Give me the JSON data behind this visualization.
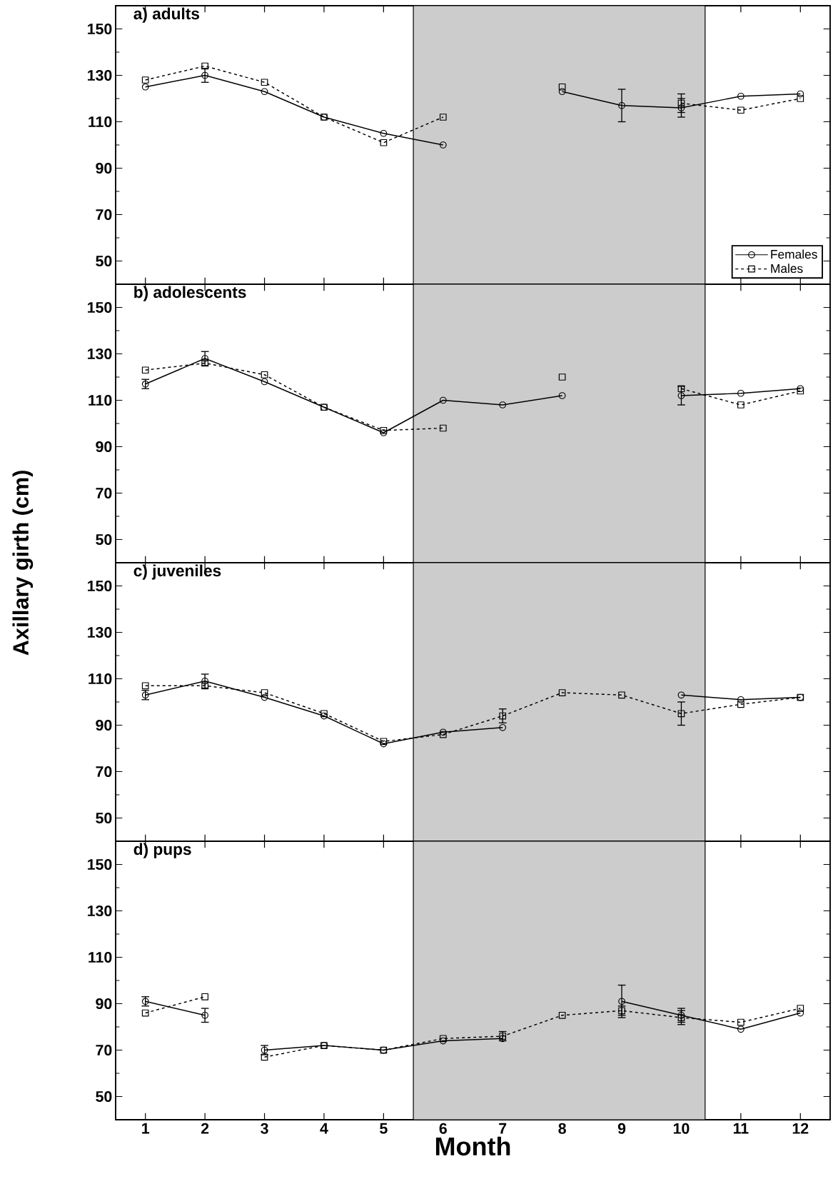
{
  "chart_data": [
    {
      "type": "line",
      "title": "a)  adults",
      "x": [
        1,
        2,
        3,
        4,
        5,
        6,
        7,
        8,
        9,
        10,
        11,
        12
      ],
      "xlim": [
        0.5,
        12.5
      ],
      "xticks": [
        1,
        2,
        3,
        4,
        5,
        6,
        7,
        8,
        9,
        10,
        11,
        12
      ],
      "ylim": [
        40,
        160
      ],
      "yticks": [
        50,
        70,
        90,
        110,
        130,
        150
      ],
      "tick_labels": "y",
      "legend": "bottom right",
      "bands": [
        {
          "axis": "x",
          "from": 5.5,
          "to": 10.4,
          "color": "#cccccc"
        }
      ],
      "series": [
        {
          "name": "Females",
          "color": "#000000",
          "marker": "circle",
          "line_style": "solid",
          "values": [
            125,
            130,
            123,
            112,
            105,
            100,
            null,
            123,
            117,
            116,
            121,
            122
          ],
          "errors": [
            null,
            3,
            null,
            null,
            null,
            null,
            null,
            null,
            7,
            4,
            null,
            null
          ]
        },
        {
          "name": "Males",
          "color": "#000000",
          "marker": "square",
          "line_style": "dashed",
          "values": [
            128,
            134,
            127,
            112,
            101,
            112,
            null,
            125,
            null,
            118,
            115,
            120
          ],
          "errors": [
            null,
            null,
            null,
            null,
            null,
            null,
            null,
            null,
            null,
            4,
            null,
            null
          ]
        }
      ]
    },
    {
      "type": "line",
      "title": "b)  adolescents",
      "ylabel": "Axillary girth (cm)",
      "x": [
        1,
        2,
        3,
        4,
        5,
        6,
        7,
        8,
        9,
        10,
        11,
        12
      ],
      "xlim": [
        0.5,
        12.5
      ],
      "xticks": [
        1,
        2,
        3,
        4,
        5,
        6,
        7,
        8,
        9,
        10,
        11,
        12
      ],
      "ylim": [
        40,
        160
      ],
      "yticks": [
        50,
        70,
        90,
        110,
        130,
        150
      ],
      "tick_labels": "y",
      "bands": [
        {
          "axis": "x",
          "from": 5.5,
          "to": 10.4,
          "color": "#cccccc"
        }
      ],
      "series": [
        {
          "color": "#000000",
          "marker": "circle",
          "line_style": "solid",
          "values": [
            117,
            128,
            118,
            107,
            96,
            110,
            108,
            112,
            null,
            112,
            113,
            115
          ],
          "errors": [
            2,
            3,
            null,
            null,
            null,
            null,
            null,
            null,
            null,
            4,
            null,
            null
          ]
        },
        {
          "color": "#000000",
          "marker": "square",
          "line_style": "dashed",
          "values": [
            123,
            126,
            121,
            107,
            97,
            98,
            null,
            120,
            null,
            115,
            108,
            114
          ]
        }
      ]
    },
    {
      "type": "line",
      "title": "c)  juveniles",
      "x": [
        1,
        2,
        3,
        4,
        5,
        6,
        7,
        8,
        9,
        10,
        11,
        12
      ],
      "xlim": [
        0.5,
        12.5
      ],
      "xticks": [
        1,
        2,
        3,
        4,
        5,
        6,
        7,
        8,
        9,
        10,
        11,
        12
      ],
      "ylim": [
        40,
        160
      ],
      "yticks": [
        50,
        70,
        90,
        110,
        130,
        150
      ],
      "tick_labels": "y",
      "bands": [
        {
          "axis": "x",
          "from": 5.5,
          "to": 10.4,
          "color": "#cccccc"
        }
      ],
      "series": [
        {
          "color": "#000000",
          "marker": "circle",
          "line_style": "solid",
          "values": [
            103,
            109,
            102,
            94,
            82,
            87,
            89,
            null,
            null,
            103,
            101,
            102
          ],
          "errors": [
            2,
            3,
            null,
            null,
            null,
            null,
            null,
            null,
            null,
            null,
            null,
            null
          ]
        },
        {
          "color": "#000000",
          "marker": "square",
          "line_style": "dashed",
          "values": [
            107,
            107,
            104,
            95,
            83,
            86,
            94,
            104,
            103,
            95,
            99,
            102
          ],
          "errors": [
            null,
            null,
            null,
            null,
            null,
            null,
            3,
            null,
            null,
            5,
            null,
            null
          ]
        }
      ]
    },
    {
      "type": "line",
      "title": "d)  pups",
      "xlabel": "Month",
      "xlim": [
        0.5,
        12.5
      ],
      "xticks": [
        1,
        2,
        3,
        4,
        5,
        6,
        7,
        8,
        9,
        10,
        11,
        12
      ],
      "ylim": [
        40,
        160
      ],
      "yticks": [
        50,
        70,
        90,
        110,
        130,
        150
      ],
      "bands": [
        {
          "axis": "x",
          "from": 5.5,
          "to": 10.4,
          "color": "#cccccc"
        }
      ],
      "series": [
        {
          "color": "#000000",
          "marker": "circle",
          "line_style": "solid",
          "x": [
            1,
            2
          ],
          "values": [
            91,
            85
          ],
          "errors": [
            2,
            3
          ]
        },
        {
          "color": "#000000",
          "marker": "circle",
          "line_style": "solid",
          "x": [
            3,
            4,
            5,
            6,
            7,
            8,
            9,
            10,
            11,
            12
          ],
          "values": [
            70,
            72,
            70,
            74,
            75,
            null,
            91,
            85,
            79,
            86
          ],
          "errors": [
            2,
            null,
            null,
            null,
            null,
            null,
            7,
            3,
            null,
            null
          ]
        },
        {
          "color": "#000000",
          "marker": "square",
          "line_style": "dashed",
          "x": [
            1,
            2
          ],
          "values": [
            86,
            93
          ]
        },
        {
          "color": "#000000",
          "marker": "square",
          "line_style": "dashed",
          "x": [
            3,
            4,
            5,
            6,
            7,
            8,
            9,
            10,
            11,
            12
          ],
          "values": [
            67,
            72,
            70,
            75,
            76,
            85,
            87,
            84,
            82,
            88
          ],
          "errors": [
            null,
            null,
            null,
            null,
            2,
            null,
            2,
            3,
            null,
            null
          ]
        }
      ]
    }
  ]
}
